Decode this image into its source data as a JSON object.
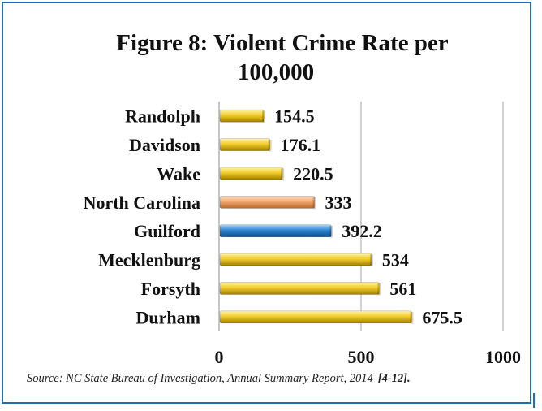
{
  "chart_data": {
    "type": "bar",
    "orientation": "horizontal",
    "title_lines": [
      "Figure 8: Violent Crime Rate per",
      "100,000"
    ],
    "categories": [
      "Randolph",
      "Davidson",
      "Wake",
      "North Carolina",
      "Guilford",
      "Mecklenburg",
      "Forsyth",
      "Durham"
    ],
    "values": [
      154.5,
      176.1,
      220.5,
      333,
      392.2,
      534,
      561,
      675.5
    ],
    "value_labels": [
      "154.5",
      "176.1",
      "220.5",
      "333",
      "392.2",
      "534",
      "561",
      "675.5"
    ],
    "bar_styles": [
      "gold",
      "gold",
      "gold",
      "peach",
      "blue",
      "gold",
      "gold",
      "gold"
    ],
    "xlim": [
      0,
      1000
    ],
    "xticks": [
      0,
      500,
      1000
    ],
    "xtick_labels": [
      "0",
      "500",
      "1000"
    ],
    "grid": "vertical gridlines at tick marks",
    "legend": "none"
  },
  "source": {
    "text": "Source: NC State Bureau of Investigation, Annual Summary Report, 2014",
    "ref": "[4-12]."
  },
  "colors": {
    "frame": "#1f6fb5",
    "gold": "#e8c01a",
    "peach": "#f0a26a",
    "blue": "#2f86d4",
    "gridline": "#a6a6a6"
  }
}
